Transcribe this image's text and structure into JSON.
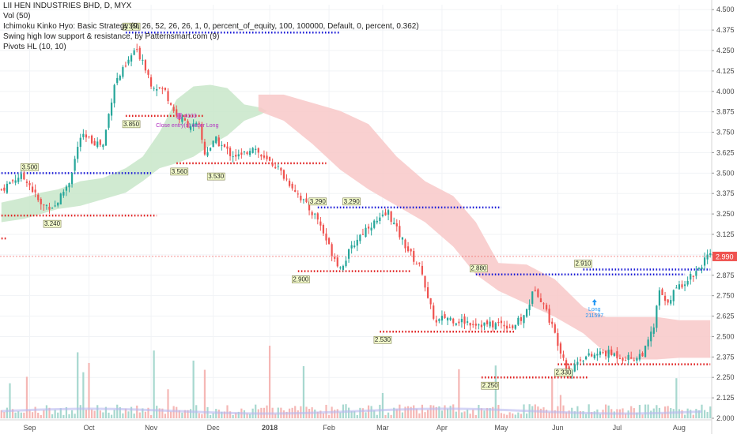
{
  "legend": {
    "symbol": "LII HEN INDUSTRIES BHD, D, MYX",
    "vol": "Vol (50)",
    "ichimoku": "Ichimoku Kinko Hyo: Basic Strategy (9, 26, 52, 26, 26, 1, 0, percent_of_equity, 100, 100000, Default, 0, percent, 0.362)",
    "swing": "Swing high low support & resistance, by Patternsmart.com (9)",
    "pivots": "Pivots HL (10, 10)"
  },
  "colors": {
    "up": "#26a69a",
    "down": "#ef5350",
    "resistance": "#1b1bd6",
    "support": "#e02020",
    "cloud_green": "#c8e6c9",
    "cloud_red": "#f8c8c8",
    "volume_up": "#a7d8cf",
    "volume_down": "#f5b7b5",
    "current_price_bg": "#ef5350",
    "pivot_label_bg": "#f6ffcf"
  },
  "chart_data": {
    "type": "candlestick",
    "y_axis": {
      "ticks": [
        "4.500",
        "4.375",
        "4.250",
        "4.125",
        "4.000",
        "3.875",
        "3.750",
        "3.625",
        "3.500",
        "3.375",
        "3.250",
        "3.125",
        "3.000",
        "2.875",
        "2.750",
        "2.625",
        "2.500",
        "2.375",
        "2.250",
        "2.125",
        "2.000"
      ],
      "ylim": [
        2.0,
        4.53
      ]
    },
    "x_axis": {
      "labels": [
        {
          "text": "Sep",
          "bar": 10,
          "bold": false
        },
        {
          "text": "Oct",
          "bar": 31,
          "bold": false
        },
        {
          "text": "Nov",
          "bar": 53,
          "bold": false
        },
        {
          "text": "Dec",
          "bar": 75,
          "bold": false
        },
        {
          "text": "2018",
          "bar": 95,
          "bold": true
        },
        {
          "text": "Feb",
          "bar": 116,
          "bold": false
        },
        {
          "text": "Mar",
          "bar": 135,
          "bold": false
        },
        {
          "text": "Apr",
          "bar": 156,
          "bold": false
        },
        {
          "text": "May",
          "bar": 177,
          "bold": false
        },
        {
          "text": "Jun",
          "bar": 197,
          "bold": false
        },
        {
          "text": "Jul",
          "bar": 218,
          "bold": false
        },
        {
          "text": "Aug",
          "bar": 240,
          "bold": false
        }
      ]
    },
    "bar_count": 252,
    "current_price": "2.990",
    "current_price_value": 2.99,
    "price_anchors": [
      [
        0,
        3.4
      ],
      [
        6,
        3.48
      ],
      [
        9,
        3.46
      ],
      [
        14,
        3.3
      ],
      [
        19,
        3.3
      ],
      [
        24,
        3.45
      ],
      [
        28,
        3.72
      ],
      [
        32,
        3.7
      ],
      [
        36,
        3.67
      ],
      [
        40,
        4.05
      ],
      [
        44,
        4.15
      ],
      [
        47,
        4.25
      ],
      [
        50,
        4.2
      ],
      [
        53,
        4.05
      ],
      [
        58,
        4.0
      ],
      [
        62,
        3.85
      ],
      [
        66,
        3.8
      ],
      [
        70,
        3.78
      ],
      [
        72,
        3.62
      ],
      [
        76,
        3.7
      ],
      [
        81,
        3.62
      ],
      [
        85,
        3.6
      ],
      [
        89,
        3.67
      ],
      [
        93,
        3.58
      ],
      [
        97,
        3.55
      ],
      [
        100,
        3.48
      ],
      [
        104,
        3.4
      ],
      [
        108,
        3.3
      ],
      [
        112,
        3.22
      ],
      [
        116,
        3.05
      ],
      [
        120,
        2.92
      ],
      [
        126,
        3.1
      ],
      [
        130,
        3.18
      ],
      [
        134,
        3.21
      ],
      [
        137,
        3.26
      ],
      [
        140,
        3.15
      ],
      [
        145,
        3.0
      ],
      [
        149,
        2.9
      ],
      [
        151,
        2.72
      ],
      [
        154,
        2.58
      ],
      [
        157,
        2.62
      ],
      [
        161,
        2.6
      ],
      [
        165,
        2.59
      ],
      [
        169,
        2.58
      ],
      [
        173,
        2.57
      ],
      [
        177,
        2.58
      ],
      [
        181,
        2.56
      ],
      [
        185,
        2.62
      ],
      [
        189,
        2.8
      ],
      [
        192,
        2.7
      ],
      [
        195,
        2.56
      ],
      [
        198,
        2.42
      ],
      [
        201,
        2.28
      ],
      [
        205,
        2.37
      ],
      [
        209,
        2.38
      ],
      [
        213,
        2.4
      ],
      [
        217,
        2.39
      ],
      [
        221,
        2.37
      ],
      [
        225,
        2.37
      ],
      [
        228,
        2.42
      ],
      [
        231,
        2.56
      ],
      [
        233,
        2.78
      ],
      [
        235,
        2.7
      ],
      [
        238,
        2.77
      ],
      [
        242,
        2.84
      ],
      [
        246,
        2.9
      ],
      [
        249,
        2.97
      ],
      [
        251,
        2.99
      ]
    ],
    "resistance_lines": [
      {
        "value": 3.5,
        "from": 0,
        "to": 53
      },
      {
        "value": 4.36,
        "from": 44,
        "to": 120
      },
      {
        "value": 3.29,
        "from": 112,
        "to": 177
      },
      {
        "value": 2.88,
        "from": 168,
        "to": 242
      },
      {
        "value": 2.91,
        "from": 206,
        "to": 251
      }
    ],
    "support_lines": [
      {
        "value": 3.24,
        "from": 0,
        "to": 55
      },
      {
        "value": 3.85,
        "from": 44,
        "to": 72
      },
      {
        "value": 3.56,
        "from": 62,
        "to": 115
      },
      {
        "value": 2.9,
        "from": 105,
        "to": 145
      },
      {
        "value": 2.53,
        "from": 134,
        "to": 182
      },
      {
        "value": 2.25,
        "from": 170,
        "to": 208
      },
      {
        "value": 2.33,
        "from": 197,
        "to": 251
      }
    ],
    "red_dotted_stub": {
      "value": 3.1,
      "from": 0,
      "to": 2
    },
    "pivot_labels": [
      {
        "text": "4.360",
        "bar": 46,
        "value": 4.36,
        "pos": "above"
      },
      {
        "text": "3.500",
        "bar": 10,
        "value": 3.5,
        "pos": "above"
      },
      {
        "text": "3.240",
        "bar": 18,
        "value": 3.24,
        "pos": "below"
      },
      {
        "text": "3.850",
        "bar": 46,
        "value": 3.85,
        "pos": "below"
      },
      {
        "text": "3.560",
        "bar": 63,
        "value": 3.56,
        "pos": "below"
      },
      {
        "text": "3.530",
        "bar": 76,
        "value": 3.53,
        "pos": "below"
      },
      {
        "text": "3.290",
        "bar": 112,
        "value": 3.29,
        "pos": "above"
      },
      {
        "text": "3.290",
        "bar": 124,
        "value": 3.29,
        "pos": "above"
      },
      {
        "text": "2.900",
        "bar": 106,
        "value": 2.9,
        "pos": "below"
      },
      {
        "text": "2.530",
        "bar": 135,
        "value": 2.53,
        "pos": "below"
      },
      {
        "text": "2.880",
        "bar": 169,
        "value": 2.88,
        "pos": "above"
      },
      {
        "text": "2.250",
        "bar": 173,
        "value": 2.25,
        "pos": "below"
      },
      {
        "text": "2.910",
        "bar": 206,
        "value": 2.91,
        "pos": "above"
      },
      {
        "text": "2.330",
        "bar": 199,
        "value": 2.33,
        "pos": "below"
      }
    ],
    "annotations": {
      "close_entry": "Close entry(s) order Long",
      "close_qty": "-4103",
      "long": "Long",
      "long_qty": "211597"
    },
    "cloud_green_top": [
      [
        0,
        3.32
      ],
      [
        8,
        3.35
      ],
      [
        14,
        3.38
      ],
      [
        20,
        3.4
      ],
      [
        28,
        3.45
      ],
      [
        36,
        3.47
      ],
      [
        44,
        3.53
      ],
      [
        50,
        3.6
      ],
      [
        56,
        3.75
      ],
      [
        62,
        3.95
      ],
      [
        68,
        4.03
      ],
      [
        74,
        4.04
      ],
      [
        80,
        4.02
      ],
      [
        86,
        3.92
      ],
      [
        92,
        3.9
      ],
      [
        94,
        3.88
      ]
    ],
    "cloud_green_bottom": [
      [
        0,
        3.2
      ],
      [
        8,
        3.22
      ],
      [
        14,
        3.25
      ],
      [
        20,
        3.28
      ],
      [
        28,
        3.3
      ],
      [
        36,
        3.34
      ],
      [
        44,
        3.38
      ],
      [
        50,
        3.45
      ],
      [
        56,
        3.53
      ],
      [
        62,
        3.56
      ],
      [
        68,
        3.6
      ],
      [
        74,
        3.67
      ],
      [
        80,
        3.73
      ],
      [
        86,
        3.82
      ],
      [
        92,
        3.86
      ],
      [
        94,
        3.88
      ]
    ],
    "cloud_red_top": [
      [
        91,
        3.98
      ],
      [
        100,
        3.98
      ],
      [
        110,
        3.93
      ],
      [
        120,
        3.88
      ],
      [
        130,
        3.8
      ],
      [
        140,
        3.6
      ],
      [
        150,
        3.45
      ],
      [
        160,
        3.36
      ],
      [
        168,
        3.2
      ],
      [
        176,
        2.95
      ],
      [
        186,
        2.94
      ],
      [
        196,
        2.85
      ],
      [
        206,
        2.68
      ],
      [
        214,
        2.62
      ],
      [
        222,
        2.62
      ],
      [
        232,
        2.62
      ],
      [
        240,
        2.6
      ],
      [
        251,
        2.6
      ]
    ],
    "cloud_red_bottom": [
      [
        91,
        3.88
      ],
      [
        100,
        3.82
      ],
      [
        110,
        3.68
      ],
      [
        120,
        3.52
      ],
      [
        130,
        3.4
      ],
      [
        140,
        3.3
      ],
      [
        150,
        3.2
      ],
      [
        160,
        3.05
      ],
      [
        168,
        2.88
      ],
      [
        176,
        2.78
      ],
      [
        186,
        2.7
      ],
      [
        196,
        2.62
      ],
      [
        206,
        2.52
      ],
      [
        214,
        2.4
      ],
      [
        222,
        2.36
      ],
      [
        232,
        2.36
      ],
      [
        240,
        2.37
      ],
      [
        251,
        2.37
      ]
    ]
  }
}
